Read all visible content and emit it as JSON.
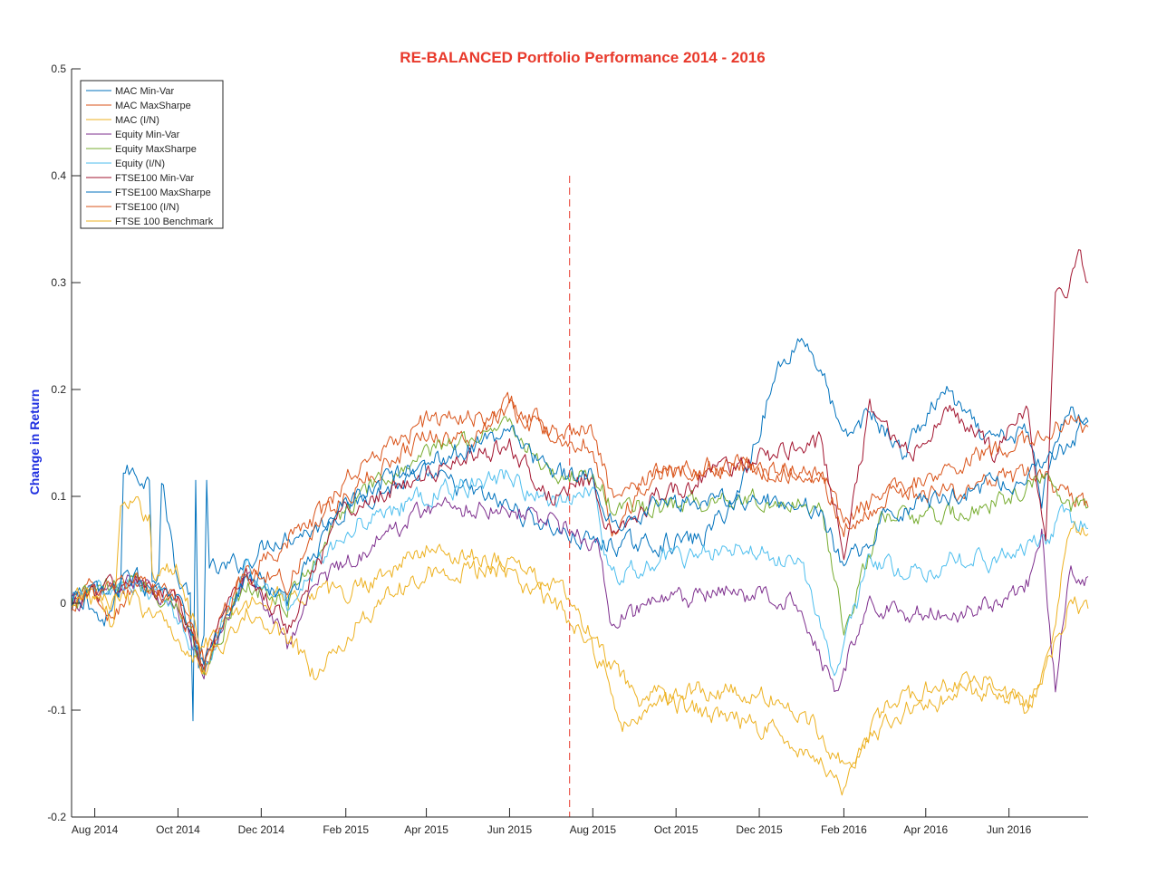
{
  "chart_data": {
    "type": "line",
    "title": "RE-BALANCED Portfolio Performance 2014 - 2016",
    "xlabel": "",
    "ylabel": "Change in Return",
    "title_color": "#e8392b",
    "ylabel_color": "#1f2fe0",
    "xlim": [
      "2014-07-15",
      "2016-07-29"
    ],
    "ylim": [
      -0.2,
      0.5
    ],
    "y_ticks": [
      -0.2,
      -0.1,
      0,
      0.1,
      0.2,
      0.3,
      0.4,
      0.5
    ],
    "y_tick_labels": [
      "-0.2",
      "-0.1",
      "0",
      "0.1",
      "0.2",
      "0.3",
      "0.4",
      "0.5"
    ],
    "x_ticks": [
      "2014-08-01",
      "2014-10-01",
      "2014-12-01",
      "2015-02-01",
      "2015-04-01",
      "2015-06-01",
      "2015-08-01",
      "2015-10-01",
      "2015-12-01",
      "2016-02-01",
      "2016-04-01",
      "2016-06-01"
    ],
    "x_tick_labels": [
      "Aug 2014",
      "Oct 2014",
      "Dec 2014",
      "Feb 2015",
      "Apr 2015",
      "Jun 2015",
      "Aug 2015",
      "Oct 2015",
      "Dec 2015",
      "Feb 2016",
      "Apr 2016",
      "Jun 2016"
    ],
    "grid": false,
    "legend_position": "top-left",
    "rebalance_marker": {
      "x": "2015-07-15",
      "y_range": [
        -0.2,
        0.4
      ],
      "color": "#e8392b",
      "style": "dashed"
    },
    "series": [
      {
        "name": "MAC Min-Var",
        "color": "#0072BD",
        "width": 1.0,
        "x": [
          "2014-07-15",
          "2014-07-25",
          "2014-08-08",
          "2014-08-20",
          "2014-08-22",
          "2014-09-10",
          "2014-09-12",
          "2014-09-17",
          "2014-09-19",
          "2014-10-01",
          "2014-10-10",
          "2014-10-12",
          "2014-10-14",
          "2014-10-16",
          "2014-10-20",
          "2014-10-22",
          "2014-10-24",
          "2014-11-01",
          "2014-11-20",
          "2014-12-10",
          "2015-01-10",
          "2015-02-15",
          "2015-04-01",
          "2015-06-01",
          "2015-07-20",
          "2015-08-10",
          "2015-09-10",
          "2015-10-20",
          "2015-11-15",
          "2015-12-15",
          "2016-01-01",
          "2016-01-15",
          "2016-02-01",
          "2016-02-20",
          "2016-03-15",
          "2016-04-15",
          "2016-05-15",
          "2016-06-15",
          "2016-06-25",
          "2016-07-05",
          "2016-07-15",
          "2016-07-29"
        ],
        "y": [
          0.0,
          0.01,
          -0.025,
          0.015,
          0.125,
          0.115,
          0.03,
          0.03,
          0.115,
          0.02,
          0.01,
          -0.11,
          0.115,
          -0.07,
          -0.03,
          0.115,
          0.03,
          0.03,
          0.04,
          0.06,
          0.07,
          0.1,
          0.12,
          0.09,
          0.06,
          0.055,
          0.055,
          0.06,
          0.1,
          0.22,
          0.25,
          0.22,
          0.15,
          0.18,
          0.14,
          0.2,
          0.15,
          0.16,
          0.1,
          0.16,
          0.18,
          0.17
        ]
      },
      {
        "name": "MAC MaxSharpe",
        "color": "#D95319",
        "width": 1.0,
        "x": [
          "2014-07-15",
          "2014-08-01",
          "2014-08-10",
          "2014-09-01",
          "2014-10-01",
          "2014-10-20",
          "2014-11-20",
          "2014-12-20",
          "2015-02-01",
          "2015-04-01",
          "2015-05-01",
          "2015-06-01",
          "2015-07-01",
          "2015-08-01",
          "2015-08-15",
          "2015-09-15",
          "2015-11-15",
          "2016-01-15",
          "2016-02-01",
          "2016-03-01",
          "2016-04-01",
          "2016-05-15",
          "2016-06-15",
          "2016-06-28",
          "2016-07-10",
          "2016-07-29"
        ],
        "y": [
          0.0,
          0.015,
          -0.02,
          0.02,
          0.0,
          -0.05,
          0.03,
          0.06,
          0.1,
          0.16,
          0.15,
          0.19,
          0.16,
          0.15,
          0.07,
          0.12,
          0.13,
          0.12,
          0.08,
          0.1,
          0.1,
          0.11,
          0.12,
          0.12,
          0.1,
          0.09
        ]
      },
      {
        "name": "MAC (I/N)",
        "color": "#EDB120",
        "width": 1.0,
        "x": [
          "2014-07-15",
          "2014-08-01",
          "2014-08-15",
          "2014-08-20",
          "2014-09-10",
          "2014-09-12",
          "2014-10-01",
          "2014-10-20",
          "2014-11-20",
          "2014-12-20",
          "2015-02-01",
          "2015-04-01",
          "2015-06-01",
          "2015-07-10",
          "2015-08-10",
          "2015-09-01",
          "2015-10-15",
          "2015-12-15",
          "2016-01-15",
          "2016-02-01",
          "2016-03-15",
          "2016-04-15",
          "2016-05-15",
          "2016-06-15",
          "2016-07-01",
          "2016-07-15",
          "2016-07-29"
        ],
        "y": [
          0.0,
          0.01,
          -0.02,
          0.09,
          0.085,
          0.03,
          0.03,
          -0.04,
          0.0,
          0.01,
          0.01,
          0.05,
          0.04,
          0.01,
          -0.05,
          -0.09,
          -0.08,
          -0.09,
          -0.12,
          -0.15,
          -0.1,
          -0.09,
          -0.08,
          -0.09,
          -0.05,
          0.07,
          0.065
        ]
      },
      {
        "name": "Equity Min-Var",
        "color": "#7E2F8E",
        "width": 1.0,
        "x": [
          "2014-07-15",
          "2014-08-01",
          "2014-09-01",
          "2014-10-01",
          "2014-10-20",
          "2014-11-20",
          "2014-12-20",
          "2015-01-10",
          "2015-02-15",
          "2015-04-01",
          "2015-06-01",
          "2015-07-15",
          "2015-08-05",
          "2015-08-15",
          "2015-09-15",
          "2015-11-15",
          "2016-01-01",
          "2016-01-25",
          "2016-02-01",
          "2016-02-20",
          "2016-03-20",
          "2016-04-20",
          "2016-05-20",
          "2016-06-15",
          "2016-06-25",
          "2016-07-05",
          "2016-07-15",
          "2016-07-29"
        ],
        "y": [
          0.0,
          0.01,
          0.02,
          -0.01,
          -0.06,
          0.03,
          -0.04,
          0.02,
          0.05,
          0.09,
          0.09,
          0.07,
          0.05,
          -0.02,
          0.0,
          0.01,
          0.0,
          -0.08,
          -0.06,
          0.0,
          -0.01,
          -0.01,
          0.0,
          0.02,
          0.07,
          -0.08,
          0.03,
          0.025
        ]
      },
      {
        "name": "Equity MaxSharpe",
        "color": "#77AC30",
        "width": 1.0,
        "x": [
          "2014-07-15",
          "2014-08-01",
          "2014-09-01",
          "2014-10-01",
          "2014-10-20",
          "2014-11-20",
          "2014-12-20",
          "2015-02-01",
          "2015-04-01",
          "2015-06-01",
          "2015-07-01",
          "2015-08-01",
          "2015-08-15",
          "2015-09-15",
          "2015-11-15",
          "2016-01-15",
          "2016-02-01",
          "2016-03-01",
          "2016-04-15",
          "2016-05-15",
          "2016-06-15",
          "2016-07-01",
          "2016-07-15",
          "2016-07-29"
        ],
        "y": [
          0.0,
          0.01,
          0.02,
          0.0,
          -0.06,
          0.02,
          0.0,
          0.09,
          0.14,
          0.17,
          0.12,
          0.12,
          0.09,
          0.09,
          0.1,
          0.09,
          -0.02,
          0.08,
          0.08,
          0.09,
          0.11,
          0.12,
          0.09,
          0.09
        ]
      },
      {
        "name": "Equity (I/N)",
        "color": "#4DBEEE",
        "width": 1.0,
        "x": [
          "2014-07-15",
          "2014-08-01",
          "2014-09-01",
          "2014-10-01",
          "2014-10-20",
          "2014-11-20",
          "2014-12-20",
          "2015-02-01",
          "2015-04-01",
          "2015-06-01",
          "2015-07-01",
          "2015-08-01",
          "2015-08-15",
          "2015-09-15",
          "2015-11-15",
          "2016-01-01",
          "2016-01-25",
          "2016-02-01",
          "2016-02-20",
          "2016-03-20",
          "2016-04-20",
          "2016-05-20",
          "2016-06-15",
          "2016-06-28",
          "2016-07-10",
          "2016-07-29"
        ],
        "y": [
          0.0,
          0.01,
          0.02,
          -0.01,
          -0.06,
          0.03,
          0.0,
          0.07,
          0.1,
          0.12,
          0.09,
          0.11,
          0.02,
          0.04,
          0.05,
          0.04,
          -0.07,
          -0.04,
          0.04,
          0.03,
          0.04,
          0.04,
          0.05,
          0.06,
          0.08,
          0.07
        ]
      },
      {
        "name": "FTSE100 Min-Var",
        "color": "#A2142F",
        "width": 1.0,
        "x": [
          "2014-07-15",
          "2014-08-01",
          "2014-09-01",
          "2014-10-01",
          "2014-10-20",
          "2014-11-20",
          "2014-12-20",
          "2015-02-01",
          "2015-04-01",
          "2015-06-01",
          "2015-07-01",
          "2015-08-01",
          "2015-08-15",
          "2015-09-15",
          "2015-11-15",
          "2016-01-15",
          "2016-02-01",
          "2016-02-20",
          "2016-03-20",
          "2016-04-20",
          "2016-05-20",
          "2016-06-15",
          "2016-06-28",
          "2016-07-05",
          "2016-07-15",
          "2016-07-22",
          "2016-07-29"
        ],
        "y": [
          0.0,
          0.01,
          0.02,
          0.0,
          -0.06,
          0.03,
          -0.02,
          0.09,
          0.12,
          0.15,
          0.1,
          0.12,
          0.06,
          0.1,
          0.13,
          0.15,
          0.05,
          0.18,
          0.14,
          0.18,
          0.14,
          0.18,
          0.06,
          0.28,
          0.3,
          0.33,
          0.3
        ]
      },
      {
        "name": "FTSE100 MaxSharpe",
        "color": "#0072BD",
        "width": 1.0,
        "x": [
          "2014-07-15",
          "2014-08-01",
          "2014-09-01",
          "2014-10-01",
          "2014-10-20",
          "2014-11-20",
          "2014-12-20",
          "2015-02-01",
          "2015-04-01",
          "2015-06-01",
          "2015-07-01",
          "2015-08-01",
          "2015-08-15",
          "2015-09-15",
          "2015-11-15",
          "2016-01-15",
          "2016-02-01",
          "2016-03-01",
          "2016-04-15",
          "2016-05-15",
          "2016-06-15",
          "2016-07-01",
          "2016-07-29"
        ],
        "y": [
          0.0,
          0.01,
          0.02,
          0.0,
          -0.06,
          0.03,
          0.0,
          0.1,
          0.13,
          0.16,
          0.12,
          0.12,
          0.08,
          0.09,
          0.1,
          0.09,
          0.03,
          0.08,
          0.1,
          0.11,
          0.12,
          0.13,
          0.17
        ]
      },
      {
        "name": "FTSE100 (I/N)",
        "color": "#D95319",
        "width": 1.0,
        "x": [
          "2014-07-15",
          "2014-08-01",
          "2014-09-01",
          "2014-10-01",
          "2014-10-20",
          "2014-11-20",
          "2014-12-20",
          "2015-02-01",
          "2015-04-01",
          "2015-06-01",
          "2015-07-01",
          "2015-08-01",
          "2015-08-15",
          "2015-09-15",
          "2015-11-15",
          "2016-01-15",
          "2016-02-01",
          "2016-03-01",
          "2016-04-15",
          "2016-05-15",
          "2016-06-15",
          "2016-07-01",
          "2016-07-15",
          "2016-07-29"
        ],
        "y": [
          0.0,
          0.01,
          0.02,
          0.0,
          -0.06,
          0.03,
          0.02,
          0.12,
          0.17,
          0.18,
          0.16,
          0.16,
          0.1,
          0.12,
          0.13,
          0.12,
          0.07,
          0.1,
          0.12,
          0.14,
          0.15,
          0.16,
          0.17,
          0.165
        ]
      },
      {
        "name": "FTSE 100 Benchmark",
        "color": "#EDB120",
        "width": 1.0,
        "x": [
          "2014-07-15",
          "2014-08-01",
          "2014-09-01",
          "2014-10-01",
          "2014-10-20",
          "2014-11-20",
          "2014-12-20",
          "2015-01-10",
          "2015-02-15",
          "2015-04-01",
          "2015-06-01",
          "2015-07-10",
          "2015-08-10",
          "2015-08-20",
          "2015-09-15",
          "2015-10-20",
          "2015-12-15",
          "2016-01-15",
          "2016-02-01",
          "2016-03-01",
          "2016-04-01",
          "2016-05-15",
          "2016-06-15",
          "2016-07-01",
          "2016-07-15",
          "2016-07-29"
        ],
        "y": [
          0.0,
          0.005,
          0.0,
          -0.03,
          -0.06,
          -0.01,
          -0.03,
          -0.07,
          -0.01,
          0.03,
          0.03,
          -0.01,
          -0.06,
          -0.12,
          -0.09,
          -0.1,
          -0.12,
          -0.15,
          -0.17,
          -0.1,
          -0.08,
          -0.07,
          -0.1,
          -0.05,
          0.0,
          -0.005
        ]
      }
    ]
  }
}
